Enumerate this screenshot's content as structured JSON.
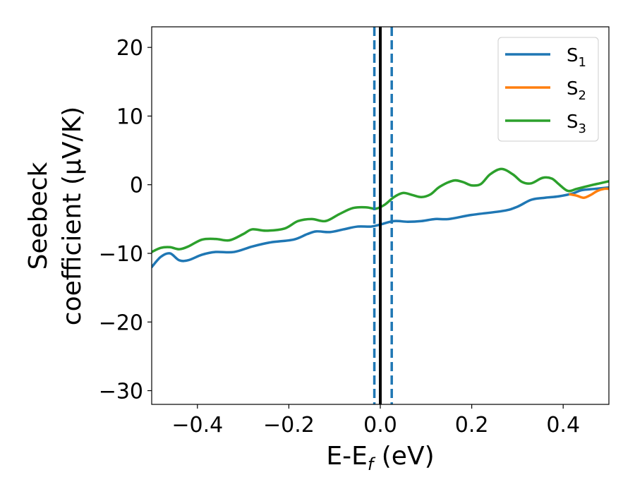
{
  "chart_data": {
    "type": "line",
    "xlabel": "E-E",
    "xlabel_sub": "f",
    "xlabel_unit": " (eV)",
    "ylabel_line1": "Seebeck",
    "ylabel_line2": "coefficient  (μV/K)",
    "xlim": [
      -0.5,
      0.5
    ],
    "ylim": [
      -32,
      23
    ],
    "xticks": [
      -0.4,
      -0.2,
      0.0,
      0.2,
      0.4
    ],
    "xtick_labels": [
      "−0.4",
      "−0.2",
      "0.0",
      "0.2",
      "0.4"
    ],
    "yticks": [
      -30,
      -20,
      -10,
      0,
      10,
      20
    ],
    "ytick_labels": [
      "−30",
      "−20",
      "−10",
      "0",
      "10",
      "20"
    ],
    "legend_position": "top-right",
    "grid": false,
    "vlines": [
      {
        "x": 0.0,
        "style": "solid",
        "color": "#000000"
      },
      {
        "x": -0.013,
        "style": "dashed",
        "color": "#1f77b4"
      },
      {
        "x": 0.025,
        "style": "dashed",
        "color": "#1f77b4"
      }
    ],
    "series": [
      {
        "name": "S",
        "name_sub": "1",
        "color": "#1f77b4",
        "points": [
          [
            -0.5,
            -12.0
          ],
          [
            -0.48,
            -10.5
          ],
          [
            -0.46,
            -10.0
          ],
          [
            -0.44,
            -11.0
          ],
          [
            -0.42,
            -11.0
          ],
          [
            -0.39,
            -10.2
          ],
          [
            -0.36,
            -9.8
          ],
          [
            -0.32,
            -9.8
          ],
          [
            -0.28,
            -9.0
          ],
          [
            -0.24,
            -8.4
          ],
          [
            -0.19,
            -8.0
          ],
          [
            -0.16,
            -7.2
          ],
          [
            -0.14,
            -6.8
          ],
          [
            -0.11,
            -6.9
          ],
          [
            -0.08,
            -6.5
          ],
          [
            -0.05,
            -6.1
          ],
          [
            -0.02,
            -6.1
          ],
          [
            0.0,
            -5.8
          ],
          [
            0.03,
            -5.3
          ],
          [
            0.06,
            -5.4
          ],
          [
            0.09,
            -5.3
          ],
          [
            0.12,
            -5.0
          ],
          [
            0.15,
            -5.0
          ],
          [
            0.2,
            -4.4
          ],
          [
            0.27,
            -3.8
          ],
          [
            0.3,
            -3.2
          ],
          [
            0.33,
            -2.2
          ],
          [
            0.36,
            -1.9
          ],
          [
            0.39,
            -1.7
          ],
          [
            0.42,
            -1.3
          ],
          [
            0.44,
            -0.8
          ],
          [
            0.47,
            -0.6
          ],
          [
            0.5,
            -0.4
          ]
        ]
      },
      {
        "name": "S",
        "name_sub": "2",
        "color": "#ff7f0e",
        "points": [
          [
            0.415,
            -1.4
          ],
          [
            0.43,
            -1.6
          ],
          [
            0.445,
            -1.9
          ],
          [
            0.46,
            -1.5
          ],
          [
            0.475,
            -0.9
          ],
          [
            0.49,
            -0.6
          ],
          [
            0.5,
            -0.6
          ]
        ]
      },
      {
        "name": "S",
        "name_sub": "3",
        "color": "#2ca02c",
        "points": [
          [
            -0.5,
            -9.8
          ],
          [
            -0.48,
            -9.2
          ],
          [
            -0.46,
            -9.1
          ],
          [
            -0.44,
            -9.4
          ],
          [
            -0.42,
            -9.0
          ],
          [
            -0.39,
            -8.0
          ],
          [
            -0.36,
            -7.9
          ],
          [
            -0.33,
            -8.1
          ],
          [
            -0.3,
            -7.2
          ],
          [
            -0.28,
            -6.5
          ],
          [
            -0.25,
            -6.7
          ],
          [
            -0.21,
            -6.4
          ],
          [
            -0.18,
            -5.3
          ],
          [
            -0.15,
            -5.0
          ],
          [
            -0.12,
            -5.3
          ],
          [
            -0.09,
            -4.3
          ],
          [
            -0.06,
            -3.4
          ],
          [
            -0.03,
            -3.3
          ],
          [
            -0.01,
            -3.5
          ],
          [
            0.01,
            -2.9
          ],
          [
            0.03,
            -1.8
          ],
          [
            0.05,
            -1.2
          ],
          [
            0.07,
            -1.5
          ],
          [
            0.09,
            -1.8
          ],
          [
            0.11,
            -1.4
          ],
          [
            0.13,
            -0.3
          ],
          [
            0.16,
            0.6
          ],
          [
            0.18,
            0.4
          ],
          [
            0.2,
            -0.1
          ],
          [
            0.22,
            0.1
          ],
          [
            0.24,
            1.5
          ],
          [
            0.265,
            2.3
          ],
          [
            0.29,
            1.5
          ],
          [
            0.31,
            0.4
          ],
          [
            0.33,
            0.2
          ],
          [
            0.355,
            1.0
          ],
          [
            0.375,
            0.9
          ],
          [
            0.39,
            0.1
          ],
          [
            0.41,
            -0.9
          ],
          [
            0.43,
            -0.6
          ],
          [
            0.46,
            -0.1
          ],
          [
            0.48,
            0.2
          ],
          [
            0.5,
            0.5
          ]
        ]
      }
    ]
  }
}
